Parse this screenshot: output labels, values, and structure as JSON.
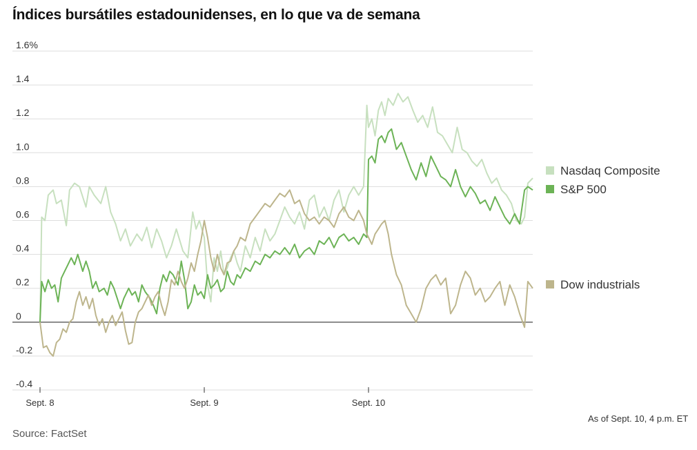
{
  "chart_data": {
    "type": "line",
    "title": "Índices bursátiles estadounidenses, en lo que va de semana",
    "x_ticks": [
      "Sept. 8",
      "Sept. 9",
      "Sept. 10"
    ],
    "y_ticks": [
      "1.6%",
      "1.4",
      "1.2",
      "1.0",
      "0.8",
      "0.6",
      "0.4",
      "0.2",
      "0",
      "-0.2",
      "-0.4"
    ],
    "y_tick_values": [
      1.6,
      1.4,
      1.2,
      1.0,
      0.8,
      0.6,
      0.4,
      0.2,
      0,
      -0.2,
      -0.4
    ],
    "ylim": [
      -0.4,
      1.6
    ],
    "xlim": [
      0,
      3
    ],
    "grid": true,
    "legend_position": "right",
    "series": [
      {
        "name": "Nasdaq Composite",
        "color": "#c7e0bf",
        "x": [
          0,
          0.01,
          0.03,
          0.05,
          0.08,
          0.1,
          0.13,
          0.16,
          0.18,
          0.21,
          0.24,
          0.28,
          0.3,
          0.33,
          0.37,
          0.4,
          0.43,
          0.46,
          0.49,
          0.52,
          0.55,
          0.59,
          0.62,
          0.65,
          0.68,
          0.71,
          0.74,
          0.77,
          0.8,
          0.83,
          0.87,
          0.9,
          0.93,
          0.95,
          0.97,
          1.0,
          1.02,
          1.04,
          1.06,
          1.08,
          1.1,
          1.12,
          1.14,
          1.16,
          1.18,
          1.2,
          1.22,
          1.25,
          1.28,
          1.31,
          1.34,
          1.37,
          1.4,
          1.43,
          1.46,
          1.49,
          1.52,
          1.55,
          1.58,
          1.61,
          1.64,
          1.67,
          1.7,
          1.73,
          1.76,
          1.79,
          1.82,
          1.85,
          1.88,
          1.91,
          1.94,
          1.97,
          1.99,
          2.0,
          2.02,
          2.04,
          2.06,
          2.08,
          2.1,
          2.12,
          2.15,
          2.18,
          2.21,
          2.24,
          2.27,
          2.3,
          2.33,
          2.36,
          2.39,
          2.42,
          2.45,
          2.48,
          2.51,
          2.54,
          2.57,
          2.6,
          2.63,
          2.66,
          2.69,
          2.72,
          2.75,
          2.78,
          2.81,
          2.84,
          2.87,
          2.9,
          2.93,
          2.95,
          2.97,
          3.0
        ],
        "values": [
          0.0,
          0.62,
          0.6,
          0.75,
          0.78,
          0.7,
          0.72,
          0.57,
          0.78,
          0.82,
          0.8,
          0.68,
          0.8,
          0.75,
          0.7,
          0.8,
          0.65,
          0.58,
          0.48,
          0.55,
          0.45,
          0.52,
          0.48,
          0.56,
          0.44,
          0.55,
          0.48,
          0.38,
          0.45,
          0.55,
          0.42,
          0.38,
          0.65,
          0.55,
          0.6,
          0.5,
          0.22,
          0.12,
          0.38,
          0.3,
          0.42,
          0.28,
          0.32,
          0.38,
          0.42,
          0.35,
          0.3,
          0.45,
          0.38,
          0.5,
          0.42,
          0.55,
          0.48,
          0.52,
          0.6,
          0.68,
          0.62,
          0.58,
          0.65,
          0.55,
          0.72,
          0.75,
          0.62,
          0.68,
          0.6,
          0.72,
          0.78,
          0.65,
          0.75,
          0.8,
          0.75,
          0.8,
          1.28,
          1.15,
          1.2,
          1.1,
          1.25,
          1.3,
          1.22,
          1.32,
          1.28,
          1.35,
          1.3,
          1.33,
          1.25,
          1.18,
          1.22,
          1.15,
          1.27,
          1.12,
          1.1,
          1.05,
          1.0,
          1.15,
          1.02,
          1.0,
          0.95,
          0.92,
          0.96,
          0.88,
          0.82,
          0.85,
          0.78,
          0.75,
          0.7,
          0.6,
          0.58,
          0.62,
          0.82,
          0.85
        ]
      },
      {
        "name": "S&P 500",
        "color": "#6cb356",
        "x": [
          0,
          0.01,
          0.03,
          0.05,
          0.07,
          0.09,
          0.11,
          0.13,
          0.15,
          0.17,
          0.19,
          0.21,
          0.23,
          0.26,
          0.28,
          0.3,
          0.32,
          0.34,
          0.36,
          0.39,
          0.41,
          0.43,
          0.45,
          0.47,
          0.49,
          0.51,
          0.54,
          0.56,
          0.58,
          0.6,
          0.62,
          0.64,
          0.67,
          0.69,
          0.71,
          0.73,
          0.75,
          0.77,
          0.79,
          0.81,
          0.84,
          0.86,
          0.88,
          0.9,
          0.92,
          0.94,
          0.96,
          0.98,
          1.0,
          1.02,
          1.04,
          1.06,
          1.08,
          1.1,
          1.12,
          1.14,
          1.16,
          1.18,
          1.2,
          1.22,
          1.25,
          1.28,
          1.31,
          1.34,
          1.37,
          1.4,
          1.43,
          1.46,
          1.49,
          1.52,
          1.55,
          1.58,
          1.61,
          1.64,
          1.67,
          1.7,
          1.73,
          1.76,
          1.79,
          1.82,
          1.85,
          1.88,
          1.91,
          1.94,
          1.97,
          1.99,
          2.0,
          2.02,
          2.04,
          2.06,
          2.08,
          2.1,
          2.12,
          2.14,
          2.17,
          2.2,
          2.23,
          2.26,
          2.29,
          2.32,
          2.35,
          2.38,
          2.41,
          2.44,
          2.47,
          2.5,
          2.53,
          2.56,
          2.59,
          2.62,
          2.65,
          2.68,
          2.71,
          2.74,
          2.77,
          2.8,
          2.83,
          2.86,
          2.89,
          2.92,
          2.95,
          2.97,
          3.0
        ],
        "values": [
          0.0,
          0.24,
          0.18,
          0.25,
          0.2,
          0.22,
          0.12,
          0.26,
          0.3,
          0.34,
          0.38,
          0.34,
          0.4,
          0.3,
          0.36,
          0.3,
          0.2,
          0.24,
          0.18,
          0.2,
          0.16,
          0.24,
          0.2,
          0.14,
          0.08,
          0.14,
          0.2,
          0.16,
          0.18,
          0.12,
          0.22,
          0.18,
          0.14,
          0.1,
          0.05,
          0.2,
          0.28,
          0.24,
          0.3,
          0.28,
          0.22,
          0.36,
          0.25,
          0.08,
          0.12,
          0.22,
          0.16,
          0.18,
          0.14,
          0.28,
          0.2,
          0.22,
          0.25,
          0.18,
          0.2,
          0.3,
          0.24,
          0.22,
          0.28,
          0.26,
          0.32,
          0.3,
          0.36,
          0.34,
          0.4,
          0.38,
          0.42,
          0.4,
          0.44,
          0.4,
          0.46,
          0.38,
          0.42,
          0.44,
          0.4,
          0.48,
          0.46,
          0.5,
          0.44,
          0.5,
          0.52,
          0.48,
          0.5,
          0.46,
          0.52,
          0.5,
          0.96,
          0.98,
          0.94,
          1.08,
          1.1,
          1.06,
          1.12,
          1.14,
          1.02,
          1.06,
          0.98,
          0.9,
          0.84,
          0.94,
          0.86,
          0.98,
          0.92,
          0.86,
          0.84,
          0.8,
          0.9,
          0.8,
          0.74,
          0.8,
          0.76,
          0.7,
          0.72,
          0.66,
          0.74,
          0.68,
          0.62,
          0.58,
          0.64,
          0.58,
          0.78,
          0.8,
          0.78
        ]
      },
      {
        "name": "Dow industrials",
        "color": "#bdb58c",
        "x": [
          0,
          0.02,
          0.04,
          0.06,
          0.08,
          0.1,
          0.12,
          0.14,
          0.16,
          0.18,
          0.2,
          0.22,
          0.24,
          0.26,
          0.28,
          0.3,
          0.32,
          0.34,
          0.36,
          0.38,
          0.4,
          0.42,
          0.44,
          0.46,
          0.48,
          0.5,
          0.52,
          0.54,
          0.56,
          0.58,
          0.6,
          0.62,
          0.64,
          0.66,
          0.68,
          0.7,
          0.72,
          0.74,
          0.76,
          0.78,
          0.8,
          0.82,
          0.84,
          0.86,
          0.88,
          0.9,
          0.92,
          0.94,
          0.96,
          0.98,
          1.0,
          1.02,
          1.04,
          1.06,
          1.08,
          1.1,
          1.12,
          1.14,
          1.16,
          1.18,
          1.2,
          1.22,
          1.25,
          1.28,
          1.31,
          1.34,
          1.37,
          1.4,
          1.43,
          1.46,
          1.49,
          1.52,
          1.55,
          1.58,
          1.61,
          1.64,
          1.67,
          1.7,
          1.73,
          1.76,
          1.79,
          1.82,
          1.85,
          1.88,
          1.91,
          1.94,
          1.97,
          1.99,
          2.0,
          2.02,
          2.04,
          2.06,
          2.08,
          2.1,
          2.12,
          2.14,
          2.17,
          2.2,
          2.23,
          2.26,
          2.29,
          2.32,
          2.35,
          2.38,
          2.41,
          2.44,
          2.47,
          2.5,
          2.53,
          2.56,
          2.59,
          2.62,
          2.65,
          2.68,
          2.71,
          2.74,
          2.77,
          2.8,
          2.83,
          2.86,
          2.89,
          2.92,
          2.95,
          2.97,
          3.0
        ],
        "values": [
          0.0,
          -0.15,
          -0.14,
          -0.18,
          -0.2,
          -0.12,
          -0.1,
          -0.04,
          -0.06,
          0.0,
          0.02,
          0.12,
          0.18,
          0.1,
          0.15,
          0.08,
          0.14,
          0.04,
          -0.02,
          0.02,
          -0.06,
          0.0,
          0.04,
          -0.02,
          0.02,
          0.06,
          -0.05,
          -0.13,
          -0.12,
          0.0,
          0.06,
          0.08,
          0.12,
          0.16,
          0.1,
          0.15,
          0.18,
          0.1,
          0.04,
          0.12,
          0.25,
          0.22,
          0.3,
          0.24,
          0.2,
          0.26,
          0.35,
          0.3,
          0.4,
          0.48,
          0.6,
          0.5,
          0.38,
          0.3,
          0.4,
          0.32,
          0.28,
          0.35,
          0.36,
          0.42,
          0.45,
          0.5,
          0.48,
          0.58,
          0.62,
          0.66,
          0.7,
          0.68,
          0.72,
          0.76,
          0.74,
          0.78,
          0.7,
          0.72,
          0.64,
          0.6,
          0.62,
          0.58,
          0.62,
          0.6,
          0.56,
          0.64,
          0.68,
          0.62,
          0.6,
          0.66,
          0.6,
          0.52,
          0.5,
          0.46,
          0.52,
          0.55,
          0.58,
          0.6,
          0.52,
          0.4,
          0.28,
          0.22,
          0.1,
          0.05,
          0.0,
          0.08,
          0.2,
          0.25,
          0.28,
          0.22,
          0.26,
          0.05,
          0.1,
          0.22,
          0.3,
          0.26,
          0.16,
          0.2,
          0.12,
          0.15,
          0.2,
          0.24,
          0.1,
          0.22,
          0.15,
          0.05,
          -0.03,
          0.24,
          0.2
        ]
      }
    ],
    "as_of": "As of Sept. 10, 4 p.m. ET",
    "source": "Source: FactSet"
  }
}
